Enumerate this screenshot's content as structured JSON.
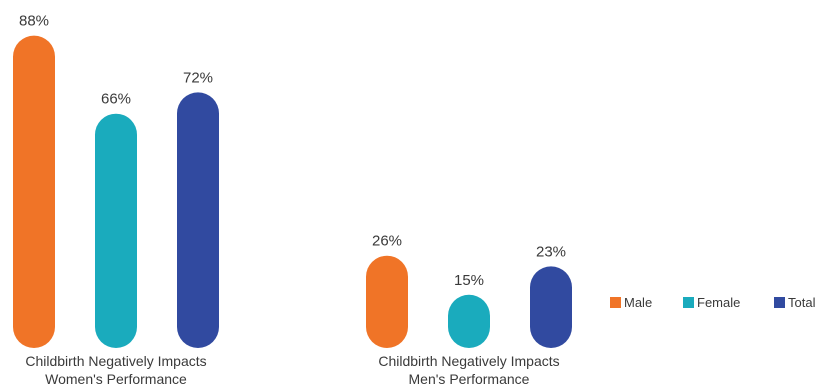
{
  "chart_data": {
    "type": "bar",
    "categories": [
      [
        "Childbirth Negatively Impacts",
        "Women's Performance"
      ],
      [
        "Childbirth Negatively Impacts",
        "Men's Performance"
      ]
    ],
    "series": [
      {
        "name": "Male",
        "color": "#F07427",
        "values": [
          88,
          26
        ],
        "labels": [
          "88%",
          "26%"
        ]
      },
      {
        "name": "Female",
        "color": "#1AABBD",
        "values": [
          66,
          15
        ],
        "labels": [
          "66%",
          "15%"
        ]
      },
      {
        "name": "Total",
        "color": "#314AA0",
        "values": [
          72,
          23
        ],
        "labels": [
          "72%",
          "23%"
        ]
      }
    ],
    "ylim": [
      0,
      100
    ],
    "bar_style": "rounded-pill",
    "legend_position": "right",
    "grid": false,
    "title": "",
    "xlabel": "",
    "ylabel": ""
  }
}
